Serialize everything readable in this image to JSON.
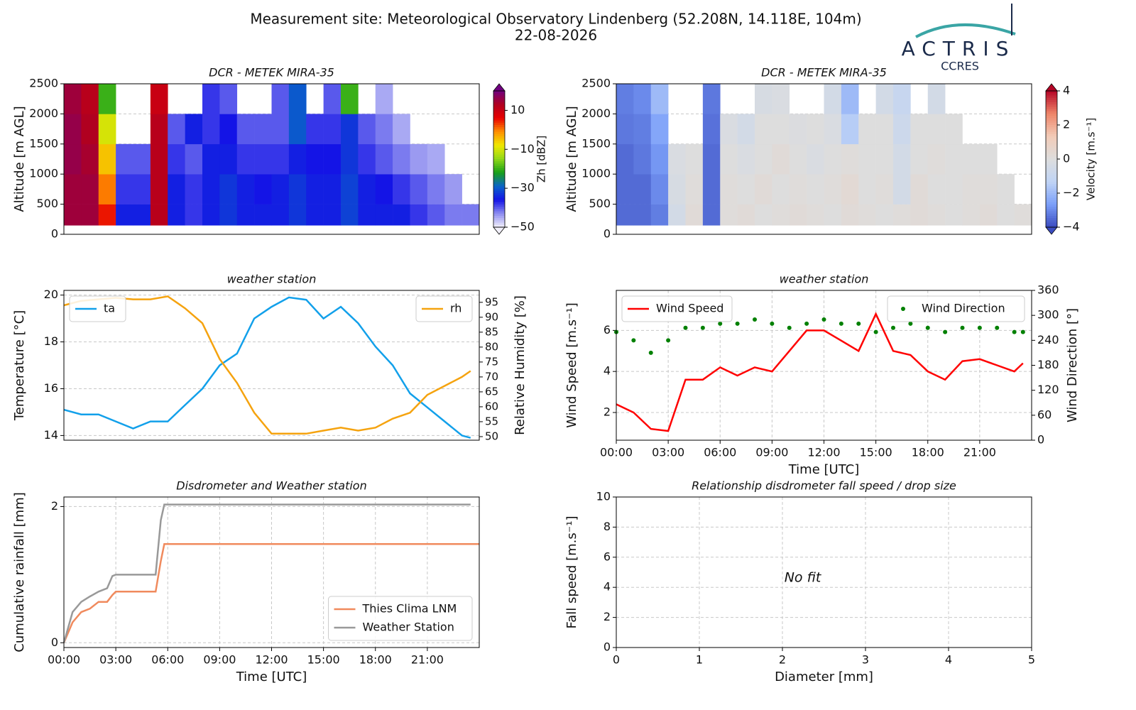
{
  "header": {
    "title": "Measurement site: Meteorological Observatory Lindenberg (52.208N, 14.118E, 104m)",
    "date": "22-08-2026"
  },
  "logo": {
    "name": "ACTRIS",
    "subtitle": "CCRES"
  },
  "chart_data": [
    {
      "type": "heatmap",
      "title": "DCR - METEK MIRA-35",
      "ylabel": "Altitude [m AGL]",
      "colorbar_label": "Zh [dBZ]",
      "colormap": "jet",
      "xlim": [
        0,
        24
      ],
      "ylim": [
        0,
        2500
      ],
      "yticks": [
        0,
        500,
        1000,
        1500,
        2000,
        2500
      ],
      "grid": true,
      "zlim": [
        -50,
        20
      ],
      "zticks": [
        10,
        {
          "value": -10,
          "label": "−10"
        },
        {
          "value": -30,
          "label": "−30"
        },
        {
          "value": -50,
          "label": "−50"
        }
      ],
      "xbins": [
        0,
        1,
        2,
        3,
        4,
        5,
        6,
        7,
        8,
        9,
        10,
        11,
        12,
        13,
        14,
        15,
        16,
        17,
        18,
        19,
        20,
        21,
        22,
        23,
        24
      ],
      "ybins": [
        150,
        500,
        1000,
        1500,
        2000,
        2500
      ],
      "z": [
        [
          15,
          15,
          5,
          -35,
          -35,
          12,
          -35,
          -38,
          -35,
          -33,
          -35,
          -35,
          -35,
          -33,
          -35,
          -35,
          -32,
          -35,
          -35,
          -35,
          -38,
          -40,
          -42,
          -42
        ],
        [
          15,
          15,
          0,
          -38,
          -38,
          12,
          -35,
          -38,
          -35,
          -33,
          -35,
          -36,
          -35,
          -33,
          -35,
          -35,
          -32,
          -35,
          -36,
          -38,
          -40,
          -42,
          -44,
          null
        ],
        [
          16,
          14,
          -5,
          -40,
          -40,
          12,
          -38,
          -40,
          -35,
          -35,
          -38,
          -38,
          -38,
          -35,
          -36,
          -36,
          -33,
          -38,
          -40,
          -42,
          -44,
          -45,
          null,
          null
        ],
        [
          16,
          13,
          -10,
          null,
          null,
          12,
          -40,
          -35,
          -38,
          -36,
          -40,
          -40,
          -40,
          -30,
          -38,
          -38,
          -33,
          -40,
          -42,
          -45,
          null,
          null,
          null,
          null
        ],
        [
          15,
          12,
          -20,
          null,
          null,
          10,
          null,
          null,
          -38,
          -40,
          null,
          null,
          -40,
          -30,
          null,
          -40,
          -20,
          null,
          -45,
          null,
          null,
          null,
          null,
          null
        ]
      ]
    },
    {
      "type": "heatmap",
      "title": "DCR - METEK MIRA-35",
      "ylabel": "Altitude [m AGL]",
      "colorbar_label": "Velocity [m.s⁻¹]",
      "colormap": "coolwarm",
      "xlim": [
        0,
        24
      ],
      "ylim": [
        0,
        2500
      ],
      "yticks": [
        0,
        500,
        1000,
        1500,
        2000,
        2500
      ],
      "grid": true,
      "zlim": [
        -4,
        4
      ],
      "zticks": [
        4,
        2,
        0,
        {
          "value": -2,
          "label": "−2"
        },
        {
          "value": -4,
          "label": "−4"
        }
      ],
      "xbins": [
        0,
        1,
        2,
        3,
        4,
        5,
        6,
        7,
        8,
        9,
        10,
        11,
        12,
        13,
        14,
        15,
        16,
        17,
        18,
        19,
        20,
        21,
        22,
        23,
        24
      ],
      "ybins": [
        150,
        500,
        1000,
        1500,
        2000,
        2500
      ],
      "z": [
        [
          -3.5,
          -3.5,
          -3.2,
          -0.5,
          0.2,
          -3.5,
          0.1,
          0.2,
          0,
          0.1,
          0.2,
          0.1,
          0,
          0.2,
          0.1,
          0,
          0.1,
          0.2,
          0.1,
          0,
          0.1,
          0.2,
          0,
          0.1
        ],
        [
          -3.5,
          -3.5,
          -3.0,
          -0.3,
          0.1,
          -3.5,
          0.1,
          0,
          0.2,
          0,
          0.1,
          0,
          0.1,
          0.3,
          0,
          0.1,
          -0.5,
          0.2,
          0,
          0,
          0.1,
          0.1,
          0,
          null
        ],
        [
          -3.5,
          -3.3,
          -2.8,
          -0.2,
          0,
          -3.5,
          0,
          -0.2,
          0,
          0.2,
          0,
          -0.2,
          0,
          0.1,
          0,
          0,
          -0.5,
          0,
          0.1,
          0,
          0,
          0,
          null,
          null
        ],
        [
          -3.3,
          -3.2,
          -2.5,
          null,
          null,
          -3.4,
          -0.2,
          -0.5,
          0,
          0,
          -0.1,
          0,
          -0.2,
          -1.5,
          0,
          0,
          -0.8,
          0,
          0,
          0,
          null,
          null,
          null,
          null
        ],
        [
          -3.2,
          -3.0,
          -2.0,
          null,
          null,
          -3.3,
          null,
          null,
          -0.3,
          -0.2,
          null,
          null,
          -0.5,
          -2,
          null,
          -0.5,
          -1.0,
          null,
          -0.5,
          null,
          null,
          null,
          null,
          null
        ]
      ]
    },
    {
      "type": "line",
      "title": "weather station",
      "ylabel": "Temperature [°C]",
      "y2label": "Relative Humidity [%]",
      "xlim": [
        0,
        24
      ],
      "ylim": [
        13.8,
        20.2
      ],
      "yticks": [
        14,
        16,
        18,
        20
      ],
      "y2lim": [
        48.8,
        99
      ],
      "y2ticks": [
        50,
        55,
        60,
        65,
        70,
        75,
        80,
        85,
        90,
        95
      ],
      "grid": true,
      "x": [
        0,
        1,
        2,
        3,
        4,
        5,
        6,
        7,
        8,
        9,
        10,
        11,
        12,
        13,
        14,
        15,
        16,
        17,
        18,
        19,
        20,
        21,
        22,
        23,
        23.5
      ],
      "series": [
        {
          "name": "ta",
          "color": "#12a0ea",
          "mode": "line",
          "legend": "upper left",
          "values": [
            15.1,
            14.9,
            14.9,
            14.6,
            14.3,
            14.6,
            14.6,
            15.3,
            16.0,
            17.0,
            17.5,
            19.0,
            19.5,
            19.9,
            19.8,
            19.0,
            19.5,
            18.8,
            17.8,
            17.0,
            15.8,
            15.2,
            14.6,
            14.0,
            13.9
          ]
        },
        {
          "name": "rh",
          "color": "#f5a30f",
          "mode": "line",
          "axis": "y2",
          "legend": "upper right",
          "values": [
            94,
            95.5,
            96,
            96.5,
            96,
            96,
            97,
            93,
            88,
            76,
            68,
            58,
            51,
            51,
            51,
            52,
            53,
            52,
            53,
            56,
            58,
            64,
            67,
            70,
            72
          ]
        }
      ]
    },
    {
      "type": "line",
      "title": "weather station",
      "ylabel": "Wind Speed [m.s⁻¹]",
      "y2label": "Wind Direction [°]",
      "xlabel": "Time [UTC]",
      "xlim": [
        0,
        24
      ],
      "ylim": [
        0.65,
        7.95
      ],
      "yticks": [
        2,
        4,
        6
      ],
      "y2lim": [
        0,
        360
      ],
      "y2ticks": [
        0,
        60,
        120,
        180,
        240,
        300,
        360
      ],
      "grid": true,
      "xticks": [
        {
          "value": 0,
          "label": "00:00"
        },
        {
          "value": 3,
          "label": "03:00"
        },
        {
          "value": 6,
          "label": "06:00"
        },
        {
          "value": 9,
          "label": "09:00"
        },
        {
          "value": 12,
          "label": "12:00"
        },
        {
          "value": 15,
          "label": "15:00"
        },
        {
          "value": 18,
          "label": "18:00"
        },
        {
          "value": 21,
          "label": "21:00"
        }
      ],
      "x": [
        0,
        1,
        2,
        3,
        4,
        5,
        6,
        7,
        8,
        9,
        10,
        11,
        12,
        13,
        14,
        15,
        16,
        17,
        18,
        19,
        20,
        21,
        22,
        23,
        23.5
      ],
      "series": [
        {
          "name": "Wind Speed",
          "color": "#ff0000",
          "mode": "line",
          "legend": "upper left",
          "values": [
            2.4,
            2.0,
            1.2,
            1.1,
            3.6,
            3.6,
            4.2,
            3.8,
            4.2,
            4.0,
            5.0,
            6.0,
            6.0,
            5.5,
            5.0,
            6.8,
            5.0,
            4.8,
            4.0,
            3.6,
            4.5,
            4.6,
            4.3,
            4.0,
            4.4
          ]
        },
        {
          "name": "Wind Direction",
          "color": "#008000",
          "mode": "markers",
          "axis": "y2",
          "legend": "upper right",
          "values": [
            260,
            240,
            210,
            240,
            270,
            270,
            280,
            280,
            290,
            280,
            270,
            280,
            290,
            280,
            280,
            260,
            270,
            280,
            270,
            260,
            270,
            270,
            270,
            260,
            260
          ]
        }
      ]
    },
    {
      "type": "line",
      "title": "Disdrometer and Weather station",
      "ylabel": "Cumulative rainfall [mm]",
      "xlabel": "Time [UTC]",
      "xlim": [
        0,
        24
      ],
      "ylim": [
        -0.07,
        2.14
      ],
      "yticks": [
        0,
        2
      ],
      "grid": true,
      "legend": "lower right",
      "xticks": [
        {
          "value": 0,
          "label": "00:00"
        },
        {
          "value": 3,
          "label": "03:00"
        },
        {
          "value": 6,
          "label": "06:00"
        },
        {
          "value": 9,
          "label": "09:00"
        },
        {
          "value": 12,
          "label": "12:00"
        },
        {
          "value": 15,
          "label": "15:00"
        },
        {
          "value": 18,
          "label": "18:00"
        },
        {
          "value": 21,
          "label": "21:00"
        }
      ],
      "x": [
        0,
        0.5,
        1,
        1.5,
        2,
        2.5,
        2.8,
        3,
        5.3,
        5.6,
        5.8,
        23.5,
        24
      ],
      "series": [
        {
          "name": "Thies Clima LNM",
          "color": "#f08a5d",
          "mode": "line",
          "values": [
            0,
            0.3,
            0.45,
            0.5,
            0.6,
            0.6,
            0.7,
            0.75,
            0.75,
            1.2,
            1.45,
            1.45,
            1.45
          ]
        },
        {
          "name": "Weather Station",
          "color": "#999999",
          "mode": "line",
          "values": [
            0,
            0.45,
            0.6,
            0.68,
            0.75,
            0.8,
            0.98,
            1.0,
            1.0,
            1.8,
            2.03,
            2.03,
            null
          ]
        }
      ]
    },
    {
      "type": "scatter",
      "title": "Relationship disdrometer fall speed / drop size",
      "ylabel": "Fall speed [m.s⁻¹]",
      "xlabel": "Diameter [mm]",
      "xlim": [
        0,
        5
      ],
      "xticks": [
        0,
        1,
        2,
        3,
        4,
        5
      ],
      "ylim": [
        0,
        10
      ],
      "yticks": [
        0,
        2,
        4,
        6,
        8,
        10
      ],
      "grid": true,
      "annotation": "No fit",
      "series": []
    }
  ]
}
